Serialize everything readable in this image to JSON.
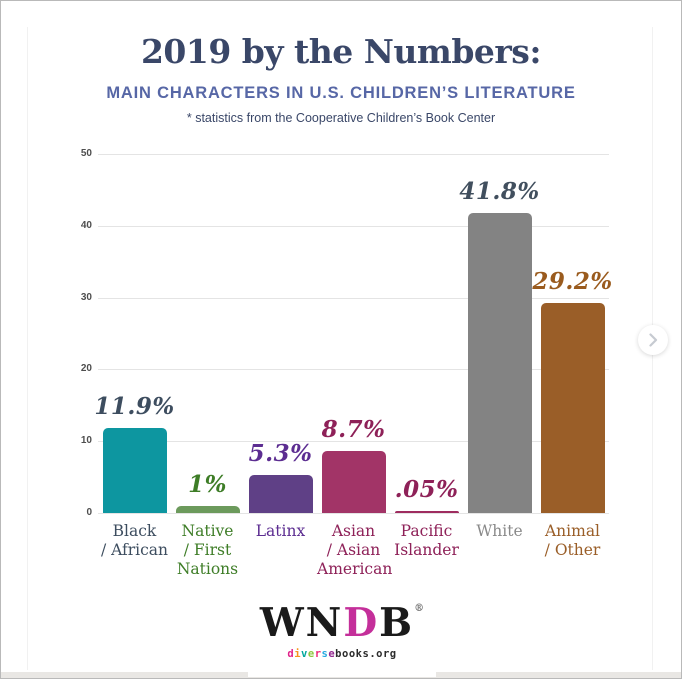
{
  "header": {
    "title": "2019 by the Numbers:",
    "subtitle": "MAIN CHARACTERS IN U.S. CHILDREN’S LITERATURE",
    "note": "* statistics from the Cooperative Children’s Book Center"
  },
  "chart_data": {
    "type": "bar",
    "title": "2019 by the Numbers: Main Characters in U.S. Children's Literature",
    "source_note": "* statistics from the Cooperative Children's Book Center",
    "categories": [
      "Black / African",
      "Native / First Nations",
      "Latinx",
      "Asian / Asian American",
      "Pacific Islander",
      "White",
      "Animal / Other"
    ],
    "category_lines": [
      [
        "Black",
        "/ African"
      ],
      [
        "Native",
        "/ First",
        "Nations"
      ],
      [
        "Latinx"
      ],
      [
        "Asian",
        "/ Asian",
        "American"
      ],
      [
        "Pacific",
        "Islander"
      ],
      [
        "White"
      ],
      [
        "Animal",
        "/ Other"
      ]
    ],
    "values": [
      11.9,
      1,
      5.3,
      8.7,
      0.05,
      41.8,
      29.2
    ],
    "value_labels": [
      "11.9%",
      "1%",
      "5.3%",
      "8.7%",
      ".05%",
      "41.8%",
      "29.2%"
    ],
    "bar_colors": [
      "#0d96a0",
      "#6c9a5c",
      "#5f4086",
      "#a23467",
      "#9e2c5f",
      "#838383",
      "#9a5e28"
    ],
    "value_label_colors": [
      "#3d4d5f",
      "#3e7d27",
      "#5c2d91",
      "#8e2158",
      "#8e2158",
      "#414f5e",
      "#9a5b1e"
    ],
    "category_text_colors": [
      "#3d4d5f",
      "#3e7d27",
      "#5c2d91",
      "#8e2158",
      "#8e2158",
      "#898989",
      "#9a5e28"
    ],
    "xlabel": "",
    "ylabel": "",
    "ylim": [
      0,
      50
    ],
    "yticks": [
      0,
      10,
      20,
      30,
      40,
      50
    ],
    "grid": true,
    "legend": false
  },
  "carousel": {
    "next_icon": "chevron-right-icon",
    "chevron_color": "#c6cad1"
  },
  "footer": {
    "logo": {
      "letters": [
        {
          "ch": "W",
          "color": "#1a1a1a"
        },
        {
          "ch": "N",
          "color": "#1a1a1a"
        },
        {
          "ch": "D",
          "color": "#c42f9a"
        },
        {
          "ch": "B",
          "color": "#1a1a1a"
        }
      ],
      "mark": "®"
    },
    "url_letters": [
      {
        "ch": "d",
        "color": "#e0218a"
      },
      {
        "ch": "i",
        "color": "#f7941d"
      },
      {
        "ch": "v",
        "color": "#00a79d"
      },
      {
        "ch": "e",
        "color": "#8dc63f"
      },
      {
        "ch": "r",
        "color": "#ee2a7b"
      },
      {
        "ch": "s",
        "color": "#27aae1"
      },
      {
        "ch": "e",
        "color": "#92278f"
      },
      {
        "ch": "b",
        "color": "#2b2b2b"
      },
      {
        "ch": "o",
        "color": "#2b2b2b"
      },
      {
        "ch": "o",
        "color": "#2b2b2b"
      },
      {
        "ch": "k",
        "color": "#2b2b2b"
      },
      {
        "ch": "s",
        "color": "#2b2b2b"
      },
      {
        "ch": ".",
        "color": "#2b2b2b"
      },
      {
        "ch": "o",
        "color": "#2b2b2b"
      },
      {
        "ch": "r",
        "color": "#2b2b2b"
      },
      {
        "ch": "g",
        "color": "#2b2b2b"
      }
    ]
  }
}
